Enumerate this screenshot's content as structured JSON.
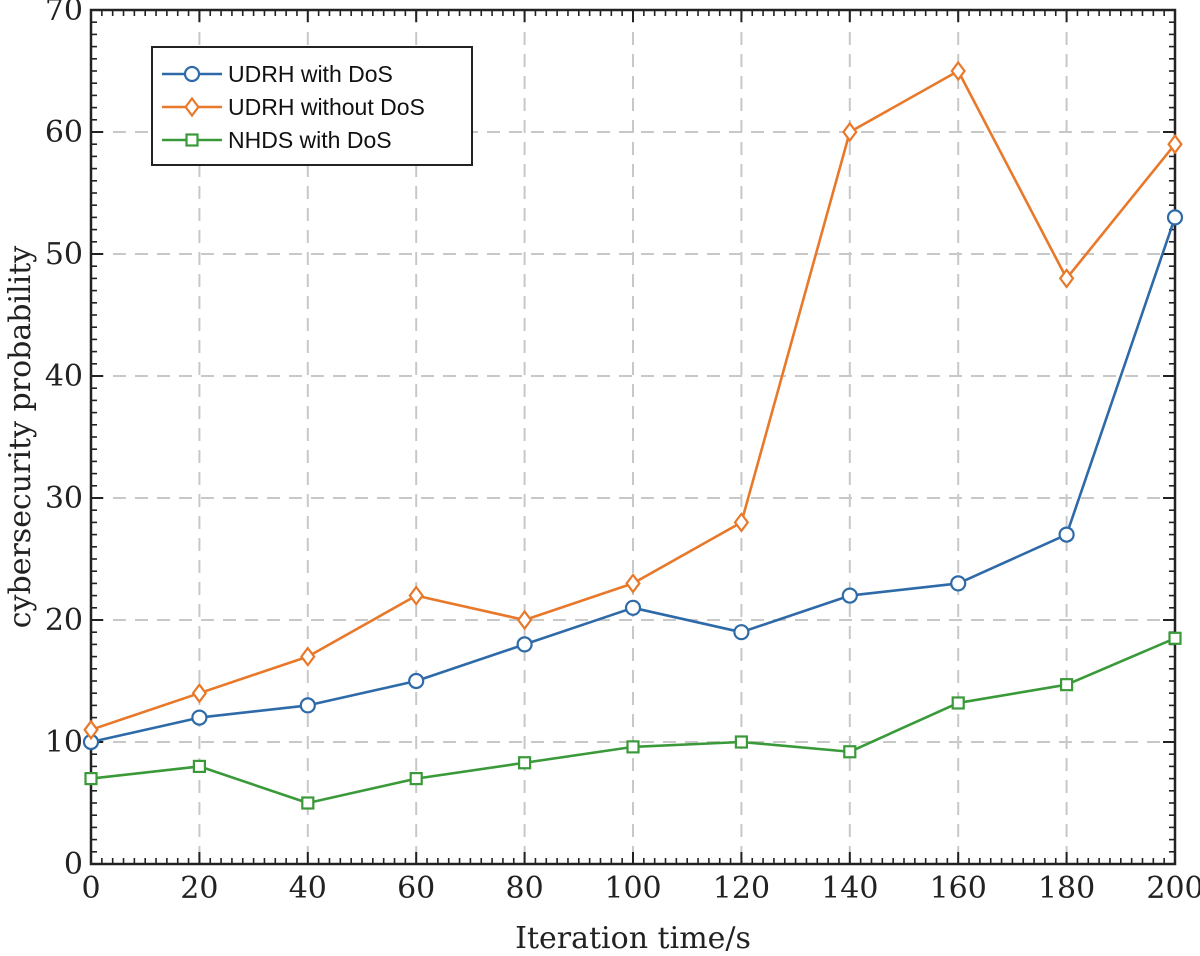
{
  "chart_data": {
    "type": "line",
    "title": "",
    "xlabel": "Iteration time/s",
    "ylabel": "cybersecurity probability",
    "xlim": [
      0,
      200
    ],
    "ylim": [
      0,
      70
    ],
    "xticks": [
      0,
      20,
      40,
      60,
      80,
      100,
      120,
      140,
      160,
      180,
      200
    ],
    "yticks": [
      0,
      10,
      20,
      30,
      40,
      50,
      60,
      70
    ],
    "grid": true,
    "legend_position": "top-left",
    "x": [
      0,
      20,
      40,
      60,
      80,
      100,
      120,
      140,
      160,
      180,
      200
    ],
    "series": [
      {
        "name": "UDRH with DoS",
        "color": "#2e6aa8",
        "marker": "circle",
        "values": [
          10,
          12,
          13,
          15,
          18,
          21,
          19,
          22,
          23,
          27,
          53
        ]
      },
      {
        "name": "UDRH without DoS",
        "color": "#e8782a",
        "marker": "diamond",
        "values": [
          11,
          14,
          17,
          22,
          20,
          23,
          28,
          60,
          65,
          48,
          59
        ]
      },
      {
        "name": "NHDS with DoS",
        "color": "#3a9a3a",
        "marker": "square",
        "values": [
          7,
          8,
          5,
          7,
          8.3,
          9.6,
          10,
          9.2,
          13.2,
          14.7,
          18.5
        ]
      }
    ]
  }
}
